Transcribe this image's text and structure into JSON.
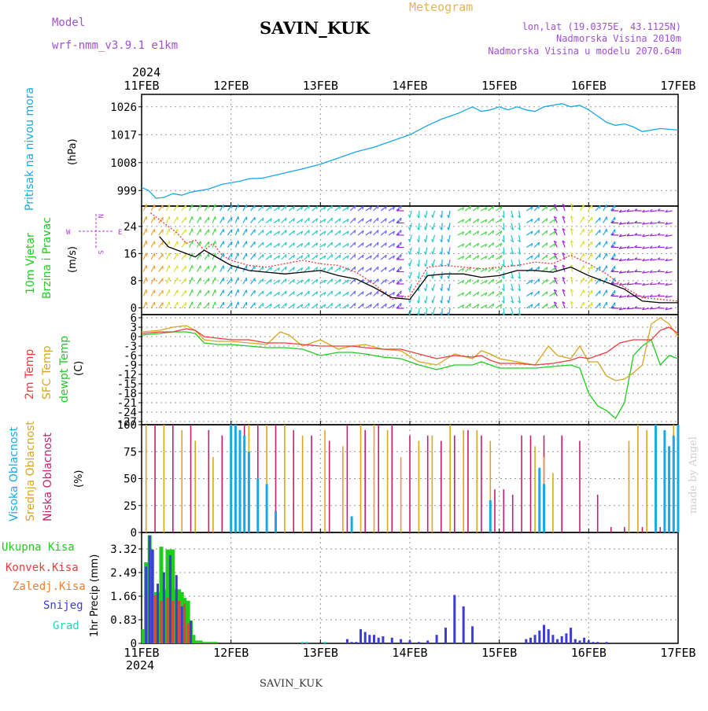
{
  "header": {
    "model_label": "Model",
    "model_name": "wrf-nmm_v3.9.1 e1km",
    "station": "SAVIN_KUK",
    "title": "Meteogram",
    "lonlat": "lon,lat (19.0375E, 43.1125N)",
    "elevation": "Nadmorska Visina 2010m",
    "model_elevation": "Nadmorska Visina u modelu 2070.64m",
    "year": "2024",
    "footer_station": "SAVIN_KUK",
    "credit": "made by Angel"
  },
  "colors": {
    "pressure": "#19a8e6",
    "temp2m": "#ee3b3b",
    "sfc": "#daa520",
    "dewpt": "#1ecd1e",
    "low_cloud": "#c81e6e",
    "mid_cloud": "#daa520",
    "high_cloud": "#19a8e6",
    "precip_total": "#1ecd1e",
    "precip_conv": "#ee3b3b",
    "precip_frozen": "#f07d28",
    "snow": "#3c3cdc",
    "graupel": "#28d2b4",
    "wind_label": "#1ecd1e",
    "wind_dir_label": "#b43cdc",
    "label_purple": "#a050d2",
    "title_orange": "#e6b450"
  },
  "chart_data": [
    {
      "type": "line",
      "panel": "pressure",
      "ylabel_outer": "Pritisak na nivou mora",
      "ylabel_unit": "(hPa)",
      "yticks": [
        999,
        1008,
        1017,
        1026
      ],
      "ylim": [
        994,
        1030
      ],
      "x_unit": "days since 11FEB",
      "series": [
        {
          "values_t": [
            0,
            0.08,
            0.16,
            0.25,
            0.35,
            0.45,
            0.55,
            0.65,
            0.75,
            0.9,
            1.0,
            1.1,
            1.2,
            1.35,
            1.5,
            1.65,
            1.8,
            2.0,
            2.2,
            2.4,
            2.6,
            2.8,
            3.0,
            3.2,
            3.35,
            3.45,
            3.55,
            3.7,
            3.8,
            3.9,
            4.0,
            4.1,
            4.2,
            4.3,
            4.4,
            4.5,
            4.6,
            4.7,
            4.8,
            4.9,
            5.0,
            5.1,
            5.2,
            5.3,
            5.4,
            5.5,
            5.6,
            5.7,
            5.8,
            6.0
          ],
          "values_y": [
            1000,
            999,
            996.5,
            996.8,
            998,
            997.5,
            998.5,
            999,
            999.5,
            1001,
            1001.5,
            1002,
            1002.8,
            1003,
            1004,
            1005,
            1006,
            1007.5,
            1009.5,
            1011.5,
            1013,
            1015,
            1017,
            1020,
            1022,
            1023,
            1024,
            1026,
            1024.5,
            1025,
            1026,
            1025,
            1026,
            1025,
            1024.5,
            1026,
            1026.5,
            1027,
            1026,
            1026.5,
            1025,
            1023,
            1021,
            1020,
            1020.5,
            1019.5,
            1018,
            1018.5,
            1019,
            1018.5
          ]
        }
      ]
    },
    {
      "type": "line",
      "panel": "wind",
      "ylabel_outer_1": "10m Vjetar",
      "ylabel_outer_2": "Brzina i Pravac",
      "ylabel_unit": "(m/s)",
      "compass": [
        "W",
        "E",
        "N",
        "S"
      ],
      "yticks": [
        0,
        8,
        16,
        24
      ],
      "ylim": [
        -2,
        30
      ],
      "series": [
        {
          "name_key": "speed_black",
          "values_t": [
            0.2,
            0.3,
            0.4,
            0.5,
            0.6,
            0.7,
            0.8,
            0.9,
            1.0,
            1.2,
            1.4,
            1.6,
            1.8,
            2.0,
            2.2,
            2.4,
            2.6,
            2.8,
            3.0,
            3.2,
            3.4,
            3.6,
            3.8,
            4.0,
            4.2,
            4.4,
            4.6,
            4.8,
            5.0,
            5.2,
            5.4,
            5.6,
            5.8,
            6.0
          ],
          "values_y": [
            21,
            18,
            17,
            16,
            15,
            17,
            15.5,
            14,
            12.5,
            11,
            10.5,
            10,
            10.5,
            11,
            9.5,
            8.5,
            6,
            3,
            2.5,
            9.5,
            10,
            10,
            9,
            9.5,
            11,
            11,
            10.5,
            12,
            9.5,
            7.5,
            5.5,
            2,
            1.5,
            1.5
          ]
        },
        {
          "name_key": "gust_red_dotted",
          "values_t": [
            0.1,
            0.2,
            0.3,
            0.4,
            0.5,
            0.6,
            0.7,
            0.8,
            0.9,
            1.0,
            1.2,
            1.4,
            1.6,
            1.8,
            2.0,
            2.2,
            2.4,
            2.6,
            2.8,
            3.0,
            3.2,
            3.4,
            3.6,
            3.8,
            4.0,
            4.2,
            4.4,
            4.6,
            4.8,
            5.0,
            5.2,
            5.4,
            5.6,
            5.8,
            6.0
          ],
          "values_y": [
            28,
            26,
            24,
            22,
            19,
            20,
            17,
            19,
            15.5,
            14,
            12.5,
            12,
            13,
            14,
            13,
            12.5,
            10.5,
            7,
            2.5,
            3.5,
            12,
            12.5,
            12,
            11.5,
            12,
            12.5,
            13.5,
            13,
            15.5,
            13,
            10,
            6,
            3,
            2.5,
            2
          ]
        }
      ]
    },
    {
      "type": "line",
      "panel": "temperature",
      "ylabel_outer_1": "2m Temp",
      "ylabel_outer_2": "SFC Temp",
      "ylabel_outer_3": "dewpt Temp",
      "ylabel_unit": "(C)",
      "yticks": [
        6,
        3,
        0,
        -3,
        -6,
        -9,
        -12,
        -15,
        -18,
        -21,
        -24,
        -27
      ],
      "ylim": [
        -28,
        7
      ],
      "series": [
        {
          "name_key": "temp2m",
          "values_t": [
            0,
            0.2,
            0.35,
            0.5,
            0.6,
            0.7,
            0.85,
            1.0,
            1.2,
            1.4,
            1.6,
            1.8,
            2.0,
            2.2,
            2.35,
            2.5,
            2.7,
            2.9,
            3.1,
            3.3,
            3.5,
            3.7,
            3.8,
            3.9,
            4.0,
            4.2,
            4.4,
            4.6,
            4.8,
            4.9,
            5.0,
            5.2,
            5.35,
            5.5,
            5.7,
            5.8,
            5.9,
            6.0
          ],
          "values_y": [
            1,
            1.5,
            1.5,
            2.5,
            2,
            0,
            -0.5,
            -1,
            -1,
            -2,
            -2,
            -2.5,
            -3,
            -3,
            -3,
            -3.5,
            -4,
            -4,
            -5.5,
            -7,
            -6,
            -6.5,
            -6,
            -7.5,
            -8.5,
            -8.5,
            -9,
            -8.5,
            -7.5,
            -6.5,
            -7,
            -5,
            -2,
            -1,
            -1,
            2,
            3,
            1
          ]
        },
        {
          "name_key": "sfc",
          "values_t": [
            0,
            0.2,
            0.35,
            0.5,
            0.6,
            0.7,
            0.85,
            1.0,
            1.2,
            1.4,
            1.55,
            1.65,
            1.8,
            2.0,
            2.2,
            2.35,
            2.5,
            2.7,
            2.9,
            3.1,
            3.3,
            3.5,
            3.7,
            3.8,
            3.9,
            4.0,
            4.2,
            4.4,
            4.55,
            4.65,
            4.8,
            4.9,
            5.0,
            5.1,
            5.2,
            5.3,
            5.4,
            5.5,
            5.6,
            5.7,
            5.8,
            5.9,
            6.0
          ],
          "values_y": [
            1.5,
            2,
            3,
            3.5,
            2,
            -1,
            -1.5,
            -1.5,
            -2,
            -2.5,
            1.5,
            0.5,
            -3,
            -1,
            -4,
            -3,
            -2.5,
            -4,
            -4.5,
            -8,
            -9,
            -5.5,
            -7,
            -4.5,
            -5.5,
            -7,
            -8,
            -9,
            -3,
            -6,
            -7,
            -3,
            -8,
            -8,
            -12.5,
            -14,
            -13.5,
            -11.5,
            -9,
            4,
            6,
            4,
            0
          ]
        },
        {
          "name_key": "dewpt",
          "values_t": [
            0,
            0.2,
            0.35,
            0.5,
            0.6,
            0.7,
            0.85,
            1.0,
            1.2,
            1.4,
            1.6,
            1.8,
            2.0,
            2.2,
            2.35,
            2.5,
            2.7,
            2.9,
            3.1,
            3.3,
            3.5,
            3.7,
            3.8,
            3.9,
            4.0,
            4.2,
            4.4,
            4.6,
            4.8,
            4.9,
            5.0,
            5.1,
            5.2,
            5.3,
            5.4,
            5.5,
            5.6,
            5.7,
            5.8,
            5.9,
            6.0
          ],
          "values_y": [
            0.5,
            1,
            1.5,
            1.5,
            1,
            -2,
            -2.5,
            -2.5,
            -3,
            -3.5,
            -3.5,
            -4,
            -6,
            -5,
            -5,
            -5.5,
            -6.5,
            -7,
            -9,
            -10.5,
            -9,
            -9,
            -8,
            -9,
            -10,
            -10,
            -10,
            -9.5,
            -9,
            -10,
            -18,
            -22,
            -23.5,
            -26,
            -21,
            -6,
            -3,
            -1,
            -9,
            -6,
            -7
          ]
        }
      ]
    },
    {
      "type": "bar",
      "panel": "clouds",
      "ylabel_outer_1": "Visoka Oblacnost",
      "ylabel_outer_2": "Srednja Oblacnost",
      "ylabel_outer_3": "Niska Oblacnost",
      "ylabel_unit": "(%)",
      "yticks": [
        0,
        25,
        50,
        75,
        100
      ],
      "ylim": [
        0,
        100
      ],
      "series": [
        {
          "name_key": "low",
          "values_t": [
            0.15,
            0.35,
            0.55,
            0.75,
            0.9,
            1.05,
            1.15,
            1.3,
            1.5,
            1.7,
            1.9,
            2.1,
            2.3,
            2.5,
            2.65,
            2.8,
            3.0,
            3.2,
            3.35,
            3.5,
            3.65,
            3.8,
            3.95,
            4.05,
            4.15,
            4.25,
            4.35,
            4.5,
            4.7,
            4.9,
            5.1,
            5.25,
            5.4,
            5.6,
            5.8,
            5.95
          ],
          "values_y": [
            100,
            100,
            100,
            95,
            90,
            100,
            100,
            100,
            100,
            95,
            90,
            85,
            100,
            95,
            100,
            100,
            90,
            90,
            85,
            90,
            95,
            90,
            40,
            40,
            35,
            90,
            90,
            90,
            90,
            85,
            35,
            5,
            5,
            5,
            5,
            5
          ]
        },
        {
          "name_key": "mid",
          "values_t": [
            0.05,
            0.25,
            0.45,
            0.6,
            0.8,
            1.0,
            1.2,
            1.4,
            1.6,
            1.8,
            2.05,
            2.25,
            2.45,
            2.6,
            2.75,
            2.9,
            3.1,
            3.25,
            3.45,
            3.6,
            3.75,
            3.9,
            4.4,
            4.5,
            4.6,
            5.45,
            5.55,
            5.65,
            5.75,
            5.85,
            5.95
          ],
          "values_y": [
            100,
            100,
            95,
            85,
            70,
            100,
            100,
            100,
            100,
            90,
            95,
            80,
            100,
            100,
            95,
            70,
            85,
            90,
            100,
            95,
            95,
            85,
            80,
            70,
            55,
            85,
            100,
            95,
            90,
            75,
            100
          ]
        },
        {
          "name_key": "high",
          "values_t": [
            0.7,
            0.95,
            1.0,
            1.05,
            1.1,
            1.15,
            1.2,
            1.3,
            1.4,
            1.5,
            2.35,
            3.9,
            4.45,
            4.5,
            5.75,
            5.85,
            5.9,
            5.95,
            6.0
          ],
          "values_y": [
            0,
            0,
            100,
            100,
            95,
            90,
            75,
            50,
            45,
            20,
            15,
            30,
            60,
            45,
            100,
            95,
            80,
            90,
            100
          ]
        }
      ]
    },
    {
      "type": "bar",
      "panel": "precip",
      "ylabel_unit": "1hr Precip (mm)",
      "yticks": [
        0,
        0.83,
        1.66,
        2.49,
        3.32
      ],
      "ylim": [
        0,
        3.9
      ],
      "legend": [
        "Ukupna Kisa",
        "Konvek.Kisa",
        "Zaledj.Kisa",
        "Snijeg",
        "Grad"
      ],
      "series": [
        {
          "name_key": "total",
          "values_t": [
            0.02,
            0.05,
            0.09,
            0.12,
            0.15,
            0.18,
            0.22,
            0.25,
            0.29,
            0.32,
            0.35,
            0.39,
            0.42,
            0.45,
            0.48,
            0.52,
            0.55,
            0.58,
            0.62,
            0.66,
            0.69,
            0.73,
            0.76,
            0.8,
            0.83
          ],
          "values_y": [
            0.5,
            2.85,
            3.8,
            3.3,
            1.8,
            1.8,
            3.4,
            1.9,
            3.3,
            3.3,
            3.3,
            1.9,
            1.9,
            1.8,
            1.6,
            1.5,
            0.8,
            0.3,
            0.1,
            0.1,
            0.05,
            0.05,
            0.05,
            0.05,
            0.05
          ]
        },
        {
          "name_key": "conv",
          "values_t": [
            0.05,
            0.09,
            0.15,
            0.22,
            0.29,
            0.35,
            0.42,
            0.48,
            0.52
          ],
          "values_y": [
            1.7,
            1.8,
            1.7,
            1.5,
            1.6,
            1.5,
            1.5,
            1.4,
            0.7
          ]
        },
        {
          "name_key": "snow",
          "values_t": [
            0.05,
            0.09,
            0.12,
            0.18,
            0.25,
            0.32,
            0.39,
            0.45,
            0.55,
            2.3,
            2.35,
            2.4,
            2.45,
            2.5,
            2.55,
            2.6,
            2.65,
            2.7,
            2.8,
            2.9,
            3.0,
            3.1,
            3.2,
            3.3,
            3.4,
            3.5,
            3.6,
            3.7,
            4.3,
            4.35,
            4.4,
            4.45,
            4.5,
            4.55,
            4.6,
            4.65,
            4.7,
            4.75,
            4.8,
            4.85,
            4.9,
            4.95,
            5.0,
            5.05,
            5.1,
            5.2
          ],
          "values_y": [
            2.7,
            3.8,
            3.3,
            2.1,
            2.5,
            3.1,
            2.4,
            1.3,
            0.8,
            0.15,
            0.05,
            0.05,
            0.5,
            0.4,
            0.3,
            0.3,
            0.2,
            0.25,
            0.2,
            0.15,
            0.1,
            0.05,
            0.1,
            0.3,
            0.55,
            1.7,
            1.3,
            0.6,
            0.15,
            0.2,
            0.3,
            0.45,
            0.65,
            0.5,
            0.3,
            0.15,
            0.25,
            0.35,
            0.55,
            0.15,
            0.1,
            0.2,
            0.1,
            0.05,
            0.05,
            0.05
          ]
        },
        {
          "name_key": "graupel",
          "values_t": [
            1.8,
            1.85,
            2.05
          ],
          "values_y": [
            0.05,
            0.05,
            0.05
          ]
        }
      ]
    }
  ],
  "x_axis": {
    "labels": [
      "11FEB",
      "12FEB",
      "13FEB",
      "14FEB",
      "15FEB",
      "16FEB",
      "17FEB"
    ]
  }
}
